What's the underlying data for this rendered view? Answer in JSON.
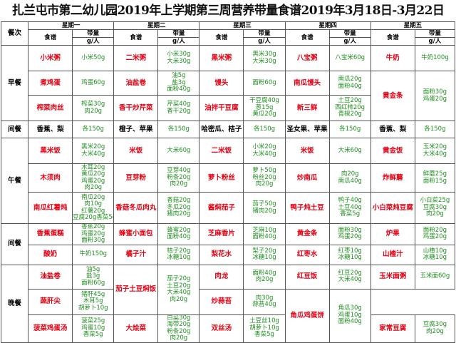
{
  "title": "扎兰屯市第二幼儿园2019年上学期第三周营养带量食谱2019年3月18日-3月22日",
  "headers": {
    "meal_col": "餐次",
    "weekdays": [
      "星期一",
      "星期二",
      "星期三",
      "星期四",
      "星期五"
    ],
    "dish_col": "食谱",
    "qty_col": "带量",
    "unit": "g/人"
  },
  "meals": [
    {
      "name": "早餐",
      "rows": [
        [
          {
            "dish": "小米粥",
            "ing": [
              "小米50g"
            ]
          },
          {
            "dish": "二米粥",
            "ing": [
              "小米30g",
              "大米30g"
            ]
          },
          {
            "dish": "黑米粥",
            "ing": [
              "黑米30g",
              "大米30g"
            ]
          },
          {
            "dish": "八宝粥",
            "ing": [
              "八宝米60g"
            ]
          },
          {
            "dish": "牛奶",
            "ing": [
              "牛奶100g"
            ]
          }
        ],
        [
          {
            "dish": "煮鸡蛋",
            "ing": [
              "鸡蛋60g"
            ]
          },
          {
            "dish": "油盐卷",
            "ing": [
              "油5g",
              "盐3g",
              "面粉40g"
            ]
          },
          {
            "dish": "馒头",
            "ing": [
              "面粉60g"
            ]
          },
          {
            "dish": "南瓜馒头",
            "ing": [
              "南瓜20g",
              "面粉40g"
            ]
          },
          {
            "dish": "黄金条",
            "ing": [
              "面粉30g",
              "鸡蛋20g"
            ],
            "rowspan": 2
          }
        ],
        [
          {
            "dish": "榨菜肉丝",
            "ing": [
              "榨菜30g",
              "肉20g"
            ]
          },
          {
            "dish": "香干炒芹菜",
            "ing": [
              "芹菜40g",
              "香干20g"
            ]
          },
          {
            "dish": "油拌干豆腐",
            "ing": [
              "干豆腐40g",
              "葱15g",
              "黄瓜20g"
            ]
          },
          {
            "dish": "新三鲜",
            "ing": [
              "土豆20g",
              "西红柿20g",
              "青椒20g"
            ]
          }
        ]
      ]
    },
    {
      "name": "间餐",
      "rows": [
        [
          {
            "dish": "香蕉、梨",
            "ing": [
              "各150g"
            ],
            "black": true
          },
          {
            "dish": "橙子、苹果",
            "ing": [
              "各150g"
            ],
            "black": true
          },
          {
            "dish": "哈密瓜、桔子",
            "ing": [
              "各150g"
            ],
            "black": true
          },
          {
            "dish": "圣女果、苹果",
            "ing": [
              "各150g"
            ],
            "black": true
          },
          {
            "dish": "香蕉、梨",
            "ing": [
              "各150g"
            ],
            "black": true
          }
        ]
      ]
    },
    {
      "name": "午餐",
      "rows": [
        [
          {
            "dish": "黑米饭",
            "ing": [
              "黑米20g",
              "大米40g"
            ]
          },
          {
            "dish": "米饭",
            "ing": [
              "大米60g"
            ]
          },
          {
            "dish": "二米饭",
            "ing": [
              "小米20g",
              "大米40g"
            ]
          },
          {
            "dish": "米饭",
            "ing": [
              "大米60g"
            ]
          },
          {
            "dish": "黄金饭",
            "ing": [
              "玉米20g",
              "大米40g"
            ]
          }
        ],
        [
          {
            "dish": "木须肉",
            "ing": [
              "木耳20g",
              "黄瓜20g",
              "鸡蛋20g",
              "肉20g"
            ]
          },
          {
            "dish": "豆芽粉",
            "ing": [
              "豆芽40g",
              "粉条20g",
              "肉20g"
            ]
          },
          {
            "dish": "萝卜粉丝",
            "ing": [
              "萝卜50g",
              "粉丝20g",
              "肉20g"
            ]
          },
          {
            "dish": "炒南瓜",
            "ing": [
              "肉20g",
              "南瓜40g"
            ]
          },
          {
            "dish": "炸鲜蘑",
            "ing": [
              "鲜蘑25g",
              "面粉15g"
            ]
          }
        ],
        [
          {
            "dish": "南瓜红薯炖",
            "ing": [
              "南瓜20g",
              "肉10g",
              "红薯20g",
              "豆腐20g香菜5g"
            ]
          },
          {
            "dish": "香菇冬瓜肉丸",
            "ing": [
              "香菇20g",
              "冬瓜20g",
              "猪肉20g"
            ]
          },
          {
            "dish": "酱焖茄子",
            "ing": [
              "茄子50g",
              "猪肉20g"
            ]
          },
          {
            "dish": "鸭子炖土豆",
            "ing": [
              "鸭子40g",
              "土豆40g",
              "香菜5g"
            ]
          },
          {
            "dish": "小白菜炖豆腐",
            "ing": [
              "小白菜25g",
              "豆腐30g",
              "肉20g"
            ]
          }
        ]
      ]
    },
    {
      "name": "间餐",
      "rows": [
        [
          {
            "dish": "香蕉蛋糕",
            "ing": [
              "香蕉20g",
              "鸡蛋20g",
              "面粉30g"
            ]
          },
          {
            "dish": "蜂蜜小面包",
            "ing": [
              "蜂蜜20g",
              "面粉40g"
            ]
          },
          {
            "dish": "芝麻香片",
            "ing": [
              "芝麻10g",
              "面粉40g"
            ]
          },
          {
            "dish": "黄金条",
            "ing": [
              "面粉30g",
              "鸡蛋20g"
            ]
          },
          {
            "dish": "炉果",
            "ing": [
              "面粉20g",
              "鸡蛋20g"
            ]
          }
        ],
        [
          {
            "dish": "酸奶",
            "ing": [
              "牛奶150g"
            ]
          },
          {
            "dish": "橘子汁",
            "ing": [
              "桔子20g",
              "冰糖10g"
            ]
          },
          {
            "dish": "梨花水",
            "ing": [
              "梨子20g",
              "冰糖10g"
            ]
          },
          {
            "dish": "红枣水",
            "ing": [
              "红枣10g",
              "冰糖10g"
            ]
          },
          {
            "dish": "山楂汁",
            "ing": [
              "山楂10g",
              "冰糖10g"
            ]
          }
        ]
      ]
    },
    {
      "name": "晚餐",
      "rows": [
        [
          {
            "dish": "油盐卷",
            "ing": [
              "油5g",
              "盐3g",
              "面粉60g"
            ]
          },
          {
            "dish": "茄子土豆焖饭",
            "ing": [
              "茄子20g",
              "土豆20g",
              "大米40g",
              "肉20g"
            ],
            "rowspan": 2
          },
          {
            "dish": "肉龙",
            "ing": [
              "面粉40g",
              "肉20g"
            ]
          },
          {
            "dish": "红豆饭",
            "ing": [
              "红豆20g",
              "大米40g"
            ]
          },
          {
            "dish": "玉米面粥",
            "ing": [
              "玉米面60g"
            ]
          }
        ],
        [
          {
            "dish": "蔬肝尖",
            "ing": [
              "猪肝45g",
              "木耳5g",
              "胡萝卜10g"
            ]
          },
          {
            "dish": "炒蒜苔",
            "ing": [
              "肉30g",
              "蒜苔40g"
            ]
          },
          {
            "dish": "角瓜鸡蛋饼",
            "ing": [
              "角瓜30g",
              "鸡蛋10g",
              "面粉40g"
            ],
            "rowspan": 2
          }
        ],
        [
          {
            "dish": "菠菜鸡蛋汤",
            "ing": [
              "菠菜25g",
              "鸡蛋10g",
              "香菜5g"
            ]
          },
          {
            "dish": "大烩菜",
            "ing": [
              "白菜30g",
              "海带20g",
              "粉条20g",
              "肉20g"
            ]
          },
          {
            "dish": "双丝汤",
            "ing": [
              "土豆丝10g",
              "胡萝卜10g",
              "香菜5g"
            ]
          },
          {
            "dish": "家常豆腐",
            "ing": [
              "豆腐30g",
              "肉20g"
            ]
          }
        ]
      ]
    }
  ]
}
